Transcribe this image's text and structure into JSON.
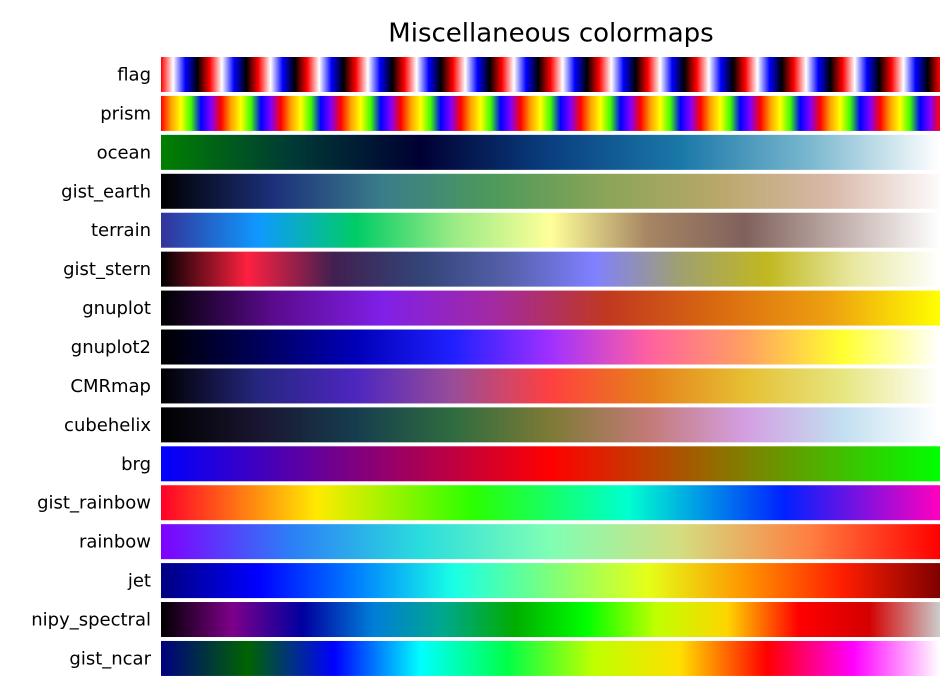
{
  "title": "Miscellaneous colormaps",
  "colormaps": [
    {
      "name": "flag",
      "colors": [
        "#ff0000",
        "#ffffff",
        "#0000ff",
        "#000000",
        "#ff0000"
      ],
      "repeat": 16
    },
    {
      "name": "prism",
      "colors": [
        "#ff0000",
        "#ffa000",
        "#ffff00",
        "#40ff00",
        "#0000ff",
        "#8000ff",
        "#ff0000"
      ],
      "repeat": 13
    },
    {
      "name": "ocean",
      "colors": [
        "#008000",
        "#003a35",
        "#000033",
        "#0a3f80",
        "#1a78a8",
        "#7ab8cf",
        "#ffffff"
      ]
    },
    {
      "name": "gist_earth",
      "colors": [
        "#000000",
        "#1c2f7a",
        "#3a7d8a",
        "#4e9a5a",
        "#8ba458",
        "#b9a76a",
        "#d8b8a8",
        "#fdfbfb"
      ]
    },
    {
      "name": "terrain",
      "colors": [
        "#333399",
        "#0f99ff",
        "#00cc66",
        "#99eb85",
        "#ffff99",
        "#a68563",
        "#80615c",
        "#c2b0ac",
        "#ffffff"
      ]
    },
    {
      "name": "gist_stern",
      "colors": [
        "#000000",
        "#ff2040",
        "#402050",
        "#334477",
        "#5560aa",
        "#8080ff",
        "#a0a070",
        "#c0b820",
        "#e8e8a0",
        "#ffffff"
      ]
    },
    {
      "name": "gnuplot",
      "colors": [
        "#000000",
        "#5a0a8c",
        "#8020e8",
        "#a32aa0",
        "#c03820",
        "#d96a10",
        "#eea010",
        "#ffff00"
      ]
    },
    {
      "name": "gnuplot2",
      "colors": [
        "#000000",
        "#00005a",
        "#0000b8",
        "#2020ff",
        "#a030ff",
        "#ff60a0",
        "#ffa060",
        "#ffff30",
        "#ffffff"
      ]
    },
    {
      "name": "CMRmap",
      "colors": [
        "#000000",
        "#262680",
        "#4d26bf",
        "#994d99",
        "#ff4040",
        "#e6801a",
        "#e6bf33",
        "#e6e680",
        "#ffffff"
      ]
    },
    {
      "name": "cubehelix",
      "colors": [
        "#000000",
        "#1a1530",
        "#163d4e",
        "#2f6c3f",
        "#7e7a36",
        "#c37a76",
        "#d49fe2",
        "#c2dff0",
        "#ffffff"
      ]
    },
    {
      "name": "brg",
      "colors": [
        "#0000ff",
        "#ff0000",
        "#00ff00"
      ]
    },
    {
      "name": "gist_rainbow",
      "colors": [
        "#ff0029",
        "#ffea00",
        "#2bff00",
        "#00ffd0",
        "#0021ff",
        "#ff00bf"
      ]
    },
    {
      "name": "rainbow",
      "colors": [
        "#8000ff",
        "#2c7ef7",
        "#2adddd",
        "#80ffb4",
        "#d4dd80",
        "#ff7e41",
        "#ff0000"
      ]
    },
    {
      "name": "jet",
      "colors": [
        "#00007f",
        "#0000ff",
        "#007fff",
        "#19ffe5",
        "#7dff7a",
        "#e5ff19",
        "#ff9400",
        "#ff1d00",
        "#7f0000"
      ]
    },
    {
      "name": "nipy_spectral",
      "colors": [
        "#000000",
        "#7e0089",
        "#0000a0",
        "#007ed8",
        "#00a88b",
        "#00ad00",
        "#00ff00",
        "#c1ff00",
        "#fed500",
        "#ff0000",
        "#d40000",
        "#cccccc"
      ]
    },
    {
      "name": "gist_ncar",
      "colors": [
        "#000080",
        "#006400",
        "#0000ff",
        "#00ffff",
        "#00ff48",
        "#bfff00",
        "#ffde00",
        "#ff0000",
        "#ff00ff",
        "#ffffff"
      ]
    }
  ]
}
